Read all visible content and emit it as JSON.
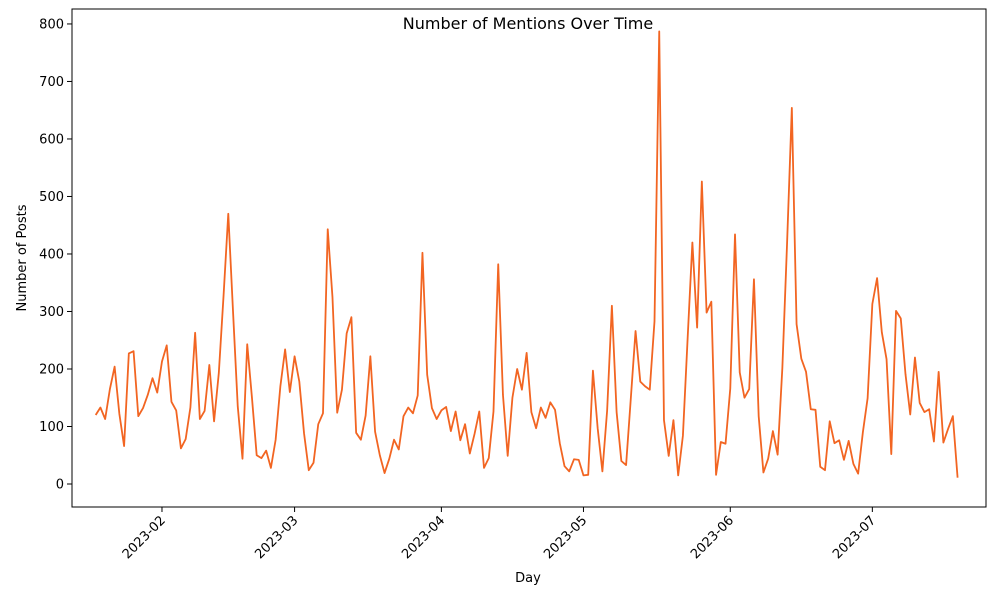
{
  "chart_data": {
    "type": "line",
    "title": "Number of Mentions Over Time",
    "xlabel": "Day",
    "ylabel": "Number of Posts",
    "color": "#f26522",
    "grid": false,
    "legend": "none",
    "x_start": "2023-01-18",
    "x_end": "2023-07-20",
    "xlim": [
      "2023-01-13",
      "2023-07-25"
    ],
    "ylim": [
      -40,
      826
    ],
    "x_ticks": [
      "2023-02-01",
      "2023-03-01",
      "2023-04-01",
      "2023-05-01",
      "2023-06-01",
      "2023-07-01"
    ],
    "x_tick_labels": [
      "2023-02",
      "2023-03",
      "2023-04",
      "2023-05",
      "2023-06",
      "2023-07"
    ],
    "y_ticks": [
      0,
      100,
      200,
      300,
      400,
      500,
      600,
      700,
      800
    ],
    "y_tick_labels": [
      "0",
      "100",
      "200",
      "300",
      "400",
      "500",
      "600",
      "700",
      "800"
    ],
    "values": [
      120,
      133,
      113,
      165,
      204,
      122,
      66,
      227,
      231,
      118,
      132,
      155,
      184,
      159,
      213,
      241,
      143,
      128,
      62,
      78,
      133,
      263,
      113,
      127,
      207,
      109,
      193,
      327,
      470,
      300,
      135,
      44,
      243,
      150,
      50,
      45,
      58,
      28,
      77,
      170,
      234,
      160,
      222,
      178,
      88,
      24,
      37,
      104,
      123,
      443,
      325,
      124,
      164,
      262,
      290,
      89,
      77,
      119,
      222,
      91,
      50,
      19,
      44,
      77,
      60,
      118,
      133,
      123,
      154,
      402,
      190,
      132,
      113,
      128,
      134,
      92,
      126,
      76,
      104,
      53,
      87,
      126,
      28,
      45,
      126,
      382,
      155,
      49,
      150,
      200,
      164,
      228,
      125,
      97,
      133,
      115,
      142,
      129,
      71,
      31,
      22,
      43,
      42,
      15,
      16,
      197,
      97,
      22,
      128,
      310,
      125,
      40,
      33,
      149,
      266,
      178,
      170,
      164,
      283,
      787,
      111,
      49,
      111,
      15,
      84,
      254,
      420,
      272,
      526,
      298,
      317,
      16,
      73,
      70,
      166,
      434,
      194,
      150,
      165,
      356,
      118,
      20,
      44,
      92,
      51,
      202,
      420,
      654,
      278,
      218,
      195,
      130,
      129,
      30,
      24,
      109,
      71,
      76,
      42,
      75,
      35,
      18,
      90,
      149,
      313,
      358,
      264,
      217,
      52,
      301,
      288,
      191,
      121,
      220,
      141,
      125,
      130,
      74,
      195,
      72,
      96,
      118,
      11
    ]
  }
}
